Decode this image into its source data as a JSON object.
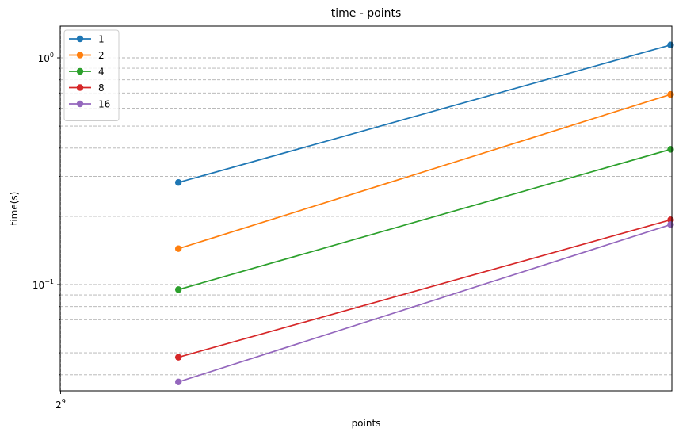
{
  "chart_data": {
    "type": "line",
    "title": "time - points",
    "xlabel": "points",
    "ylabel": "time(s)",
    "xscale": "log2",
    "yscale": "log10",
    "xlim": [
      511,
      16500
    ],
    "ylim": [
      0.034,
      1.38
    ],
    "x_ticks": [
      {
        "value": 512,
        "base": "2",
        "exp": "9"
      }
    ],
    "y_ticks": [
      {
        "value": 0.1,
        "base": "10",
        "exp": "−1"
      },
      {
        "value": 1,
        "base": "10",
        "exp": "0"
      }
    ],
    "grid": "y-major-minor",
    "legend_position": "upper-left",
    "x": [
      1000,
      16384
    ],
    "series": [
      {
        "name": "1",
        "color": "#1f77b4",
        "values": [
          0.282,
          1.14
        ]
      },
      {
        "name": "2",
        "color": "#ff7f0e",
        "values": [
          0.144,
          0.69
        ]
      },
      {
        "name": "4",
        "color": "#2ca02c",
        "values": [
          0.095,
          0.395
        ]
      },
      {
        "name": "8",
        "color": "#d62728",
        "values": [
          0.0478,
          0.193
        ]
      },
      {
        "name": "16",
        "color": "#9467bd",
        "values": [
          0.0372,
          0.184
        ]
      }
    ]
  }
}
